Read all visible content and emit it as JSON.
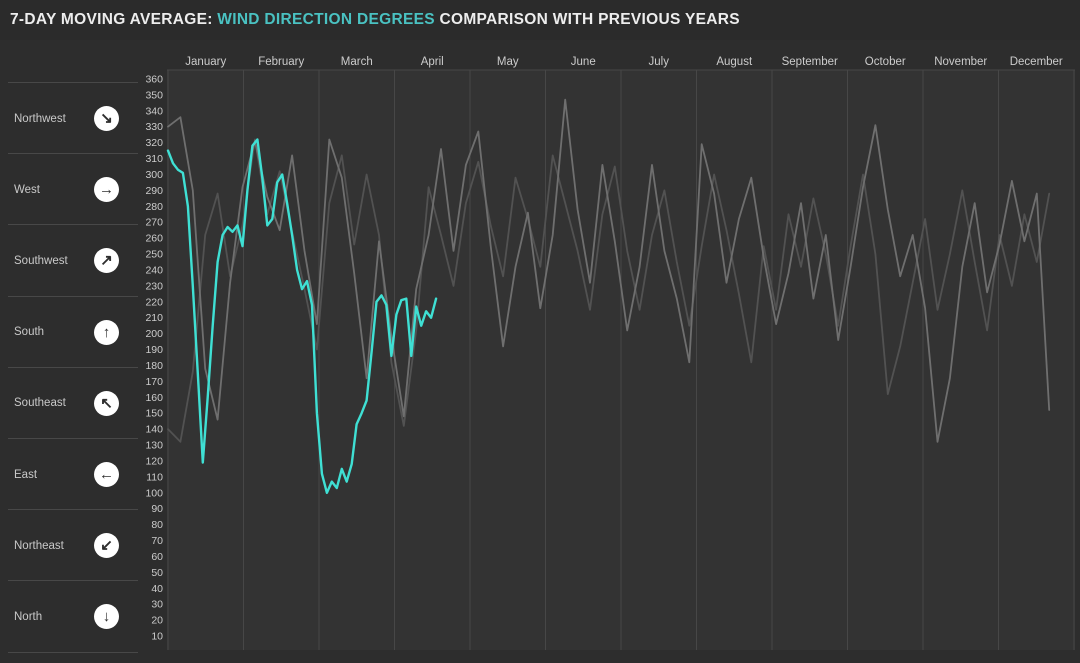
{
  "header": {
    "title_prefix": "7-DAY MOVING AVERAGE: ",
    "title_highlight": "WIND DIRECTION DEGREES",
    "title_suffix": " COMPARISON WITH PREVIOUS YEARS",
    "highlight_color": "#4ac2c2"
  },
  "sidebar": {
    "items": [
      {
        "label": "Northwest",
        "icon": "arrow-down-right-icon",
        "glyph": "↘"
      },
      {
        "label": "West",
        "icon": "arrow-right-icon",
        "glyph": "→"
      },
      {
        "label": "Southwest",
        "icon": "arrow-up-right-icon",
        "glyph": "↗"
      },
      {
        "label": "South",
        "icon": "arrow-up-icon",
        "glyph": "↑"
      },
      {
        "label": "Southeast",
        "icon": "arrow-up-left-icon",
        "glyph": "↖"
      },
      {
        "label": "East",
        "icon": "arrow-left-icon",
        "glyph": "←"
      },
      {
        "label": "Northeast",
        "icon": "arrow-down-left-icon",
        "glyph": "↙"
      },
      {
        "label": "North",
        "icon": "arrow-down-icon",
        "glyph": "↓"
      }
    ]
  },
  "chart_data": {
    "type": "line",
    "title": "7-DAY MOVING AVERAGE: WIND DIRECTION DEGREES COMPARISON WITH PREVIOUS YEARS",
    "xlabel": "",
    "ylabel": "wind direction degrees",
    "x_tick_labels": [
      "January",
      "February",
      "March",
      "April",
      "May",
      "June",
      "July",
      "August",
      "September",
      "October",
      "November",
      "December"
    ],
    "y_ticks": [
      360,
      350,
      340,
      330,
      320,
      310,
      300,
      290,
      280,
      270,
      260,
      250,
      240,
      230,
      220,
      210,
      200,
      190,
      180,
      170,
      160,
      150,
      140,
      130,
      120,
      110,
      100,
      90,
      80,
      70,
      60,
      50,
      40,
      30,
      20,
      10
    ],
    "ylim": [
      0,
      366
    ],
    "x_range_days": [
      1,
      365
    ],
    "grid": "vertical-month-lines-only",
    "legend": "none",
    "colors": {
      "current_year": "#3fe0d4",
      "previous_year_light": "#6f6f6f",
      "previous_year_dark": "#525252"
    },
    "series": [
      {
        "name": "previous-year-2",
        "color": "#525252",
        "width": 1.8,
        "start_day": 1,
        "step_days": 5,
        "values": [
          140,
          132,
          176,
          262,
          288,
          236,
          268,
          322,
          275,
          302,
          264,
          228,
          190,
          282,
          312,
          256,
          300,
          262,
          182,
          142,
          202,
          292,
          262,
          230,
          282,
          308,
          268,
          236,
          298,
          272,
          242,
          312,
          282,
          252,
          215,
          275,
          305,
          252,
          215,
          262,
          290,
          245,
          205,
          255,
          300,
          265,
          225,
          182,
          255,
          215,
          275,
          242,
          285,
          250,
          205,
          255,
          300,
          250,
          162,
          192,
          232,
          272,
          215,
          250,
          290,
          245,
          202,
          262,
          230,
          275,
          245,
          288
        ]
      },
      {
        "name": "previous-year-1",
        "color": "#6f6f6f",
        "width": 1.8,
        "start_day": 1,
        "step_days": 5,
        "values": [
          330,
          336,
          290,
          178,
          146,
          232,
          292,
          321,
          286,
          265,
          312,
          252,
          206,
          322,
          298,
          238,
          172,
          258,
          198,
          148,
          228,
          262,
          316,
          252,
          306,
          327,
          255,
          192,
          242,
          276,
          216,
          262,
          347,
          278,
          232,
          306,
          258,
          202,
          242,
          306,
          252,
          222,
          182,
          319,
          288,
          232,
          272,
          298,
          248,
          206,
          238,
          282,
          222,
          262,
          196,
          242,
          292,
          331,
          278,
          236,
          262,
          216,
          132,
          172,
          242,
          282,
          226,
          256,
          296,
          258,
          288,
          152
        ]
      },
      {
        "name": "current-year",
        "color": "#3fe0d4",
        "width": 2.4,
        "start_day": 1,
        "step_days": 2,
        "values": [
          315,
          307,
          303,
          301,
          280,
          230,
          175,
          119,
          160,
          205,
          245,
          262,
          267,
          264,
          268,
          255,
          290,
          318,
          322,
          298,
          268,
          272,
          295,
          300,
          282,
          262,
          240,
          228,
          233,
          218,
          150,
          112,
          100,
          107,
          103,
          115,
          107,
          118,
          143,
          150,
          158,
          188,
          220,
          224,
          218,
          186,
          212,
          221,
          222,
          186,
          217,
          205,
          214,
          210,
          222
        ]
      }
    ]
  }
}
